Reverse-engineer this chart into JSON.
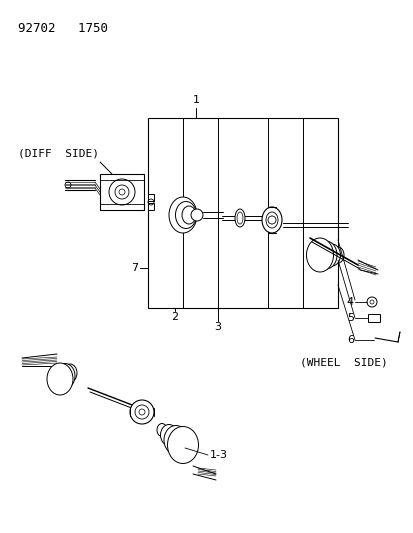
{
  "title_code": "92702   1750",
  "bg_color": "#ffffff",
  "line_color": "#000000",
  "fig_width": 4.14,
  "fig_height": 5.33,
  "dpi": 100,
  "labels": {
    "diff_side": "(DIFF  SIDE)",
    "wheel_side": "(WHEEL  SIDE)",
    "num_1": "1",
    "num_2": "2",
    "num_3": "3",
    "num_4": "4",
    "num_5": "5",
    "num_6": "6",
    "num_7": "7",
    "num_13": "1-3"
  },
  "font_size_title": 9,
  "font_size_label": 8,
  "font_size_side": 8
}
